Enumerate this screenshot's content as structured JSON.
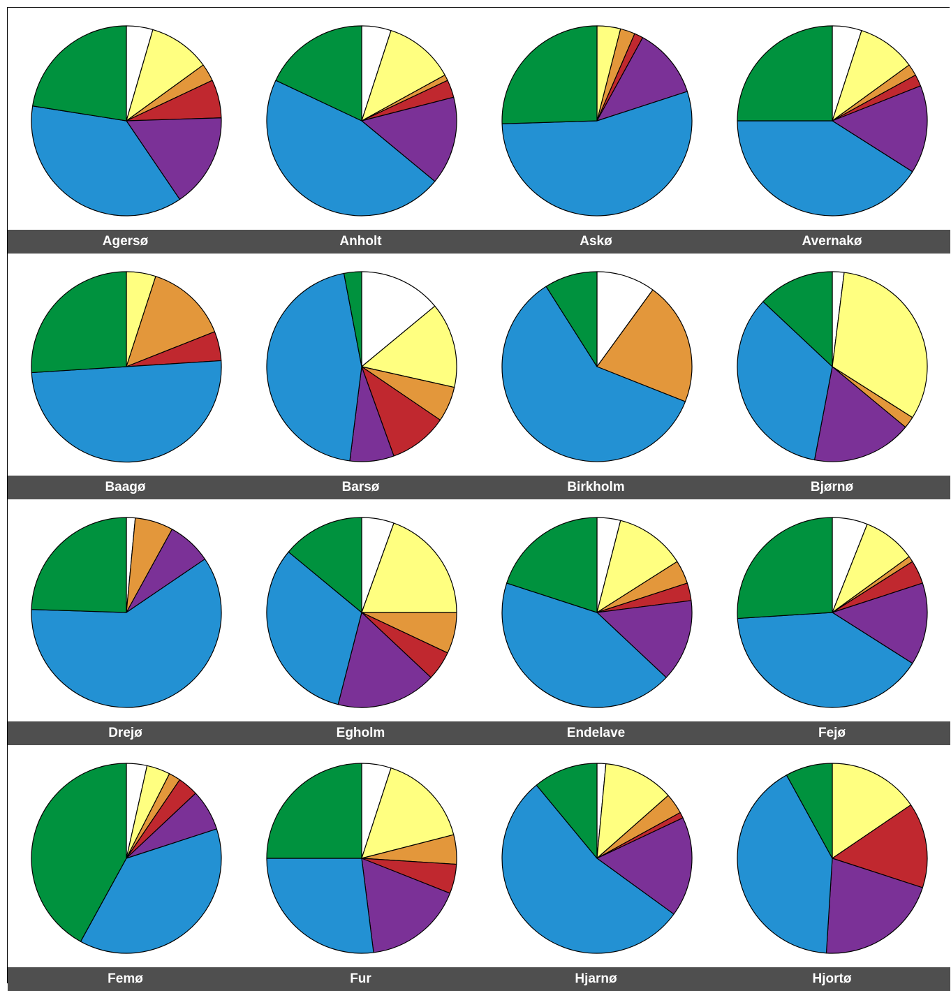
{
  "colors": {
    "white": "#ffffff",
    "yellow": "#ffff80",
    "orange": "#e3973b",
    "red": "#c0282f",
    "purple": "#7b3197",
    "blue": "#2391d3",
    "green": "#00923e",
    "label_bar": "#4f4f4f"
  },
  "series_order": [
    "white",
    "yellow",
    "orange",
    "red",
    "purple",
    "blue",
    "green"
  ],
  "chart_data": [
    {
      "type": "pie",
      "label": "Agersø",
      "values": [
        4.5,
        10.5,
        3,
        6.5,
        16,
        37,
        22.5
      ]
    },
    {
      "type": "pie",
      "label": "Anholt",
      "values": [
        5,
        12,
        1,
        3,
        15,
        46,
        18
      ]
    },
    {
      "type": "pie",
      "label": "Askø",
      "values": [
        0,
        4,
        2.5,
        1.5,
        12,
        54.5,
        25.5
      ]
    },
    {
      "type": "pie",
      "label": "Avernakø",
      "values": [
        5,
        10,
        2,
        2,
        15,
        41,
        25
      ]
    },
    {
      "type": "pie",
      "label": "Baagø",
      "values": [
        0,
        5,
        14,
        5,
        0,
        50,
        26
      ]
    },
    {
      "type": "pie",
      "label": "Barsø",
      "values": [
        14,
        14.5,
        6,
        10,
        7.5,
        45,
        3
      ]
    },
    {
      "type": "pie",
      "label": "Birkholm",
      "values": [
        10,
        0,
        21,
        0,
        0,
        60,
        9
      ]
    },
    {
      "type": "pie",
      "label": "Bjørnø",
      "values": [
        2,
        32,
        2,
        0,
        17,
        34,
        13
      ]
    },
    {
      "type": "pie",
      "label": "Drejø",
      "values": [
        1.5,
        0,
        6.5,
        0,
        7.5,
        60,
        24.5
      ]
    },
    {
      "type": "pie",
      "label": "Egholm",
      "values": [
        5.5,
        19.5,
        7,
        5,
        17,
        32,
        14
      ]
    },
    {
      "type": "pie",
      "label": "Endelave",
      "values": [
        4,
        12,
        4,
        3,
        14,
        43,
        20
      ]
    },
    {
      "type": "pie",
      "label": "Fejø",
      "values": [
        6,
        9,
        1,
        4,
        14,
        40,
        26
      ]
    },
    {
      "type": "pie",
      "label": "Femø",
      "values": [
        3.5,
        4,
        2,
        3.5,
        7,
        38,
        42
      ]
    },
    {
      "type": "pie",
      "label": "Fur",
      "values": [
        5,
        16,
        5,
        5,
        17,
        27,
        25
      ]
    },
    {
      "type": "pie",
      "label": "Hjarnø",
      "values": [
        1.5,
        12,
        3.5,
        1,
        17,
        54,
        11
      ]
    },
    {
      "type": "pie",
      "label": "Hjortø",
      "values": [
        0,
        15.5,
        0,
        14.5,
        21,
        41,
        8
      ]
    }
  ]
}
